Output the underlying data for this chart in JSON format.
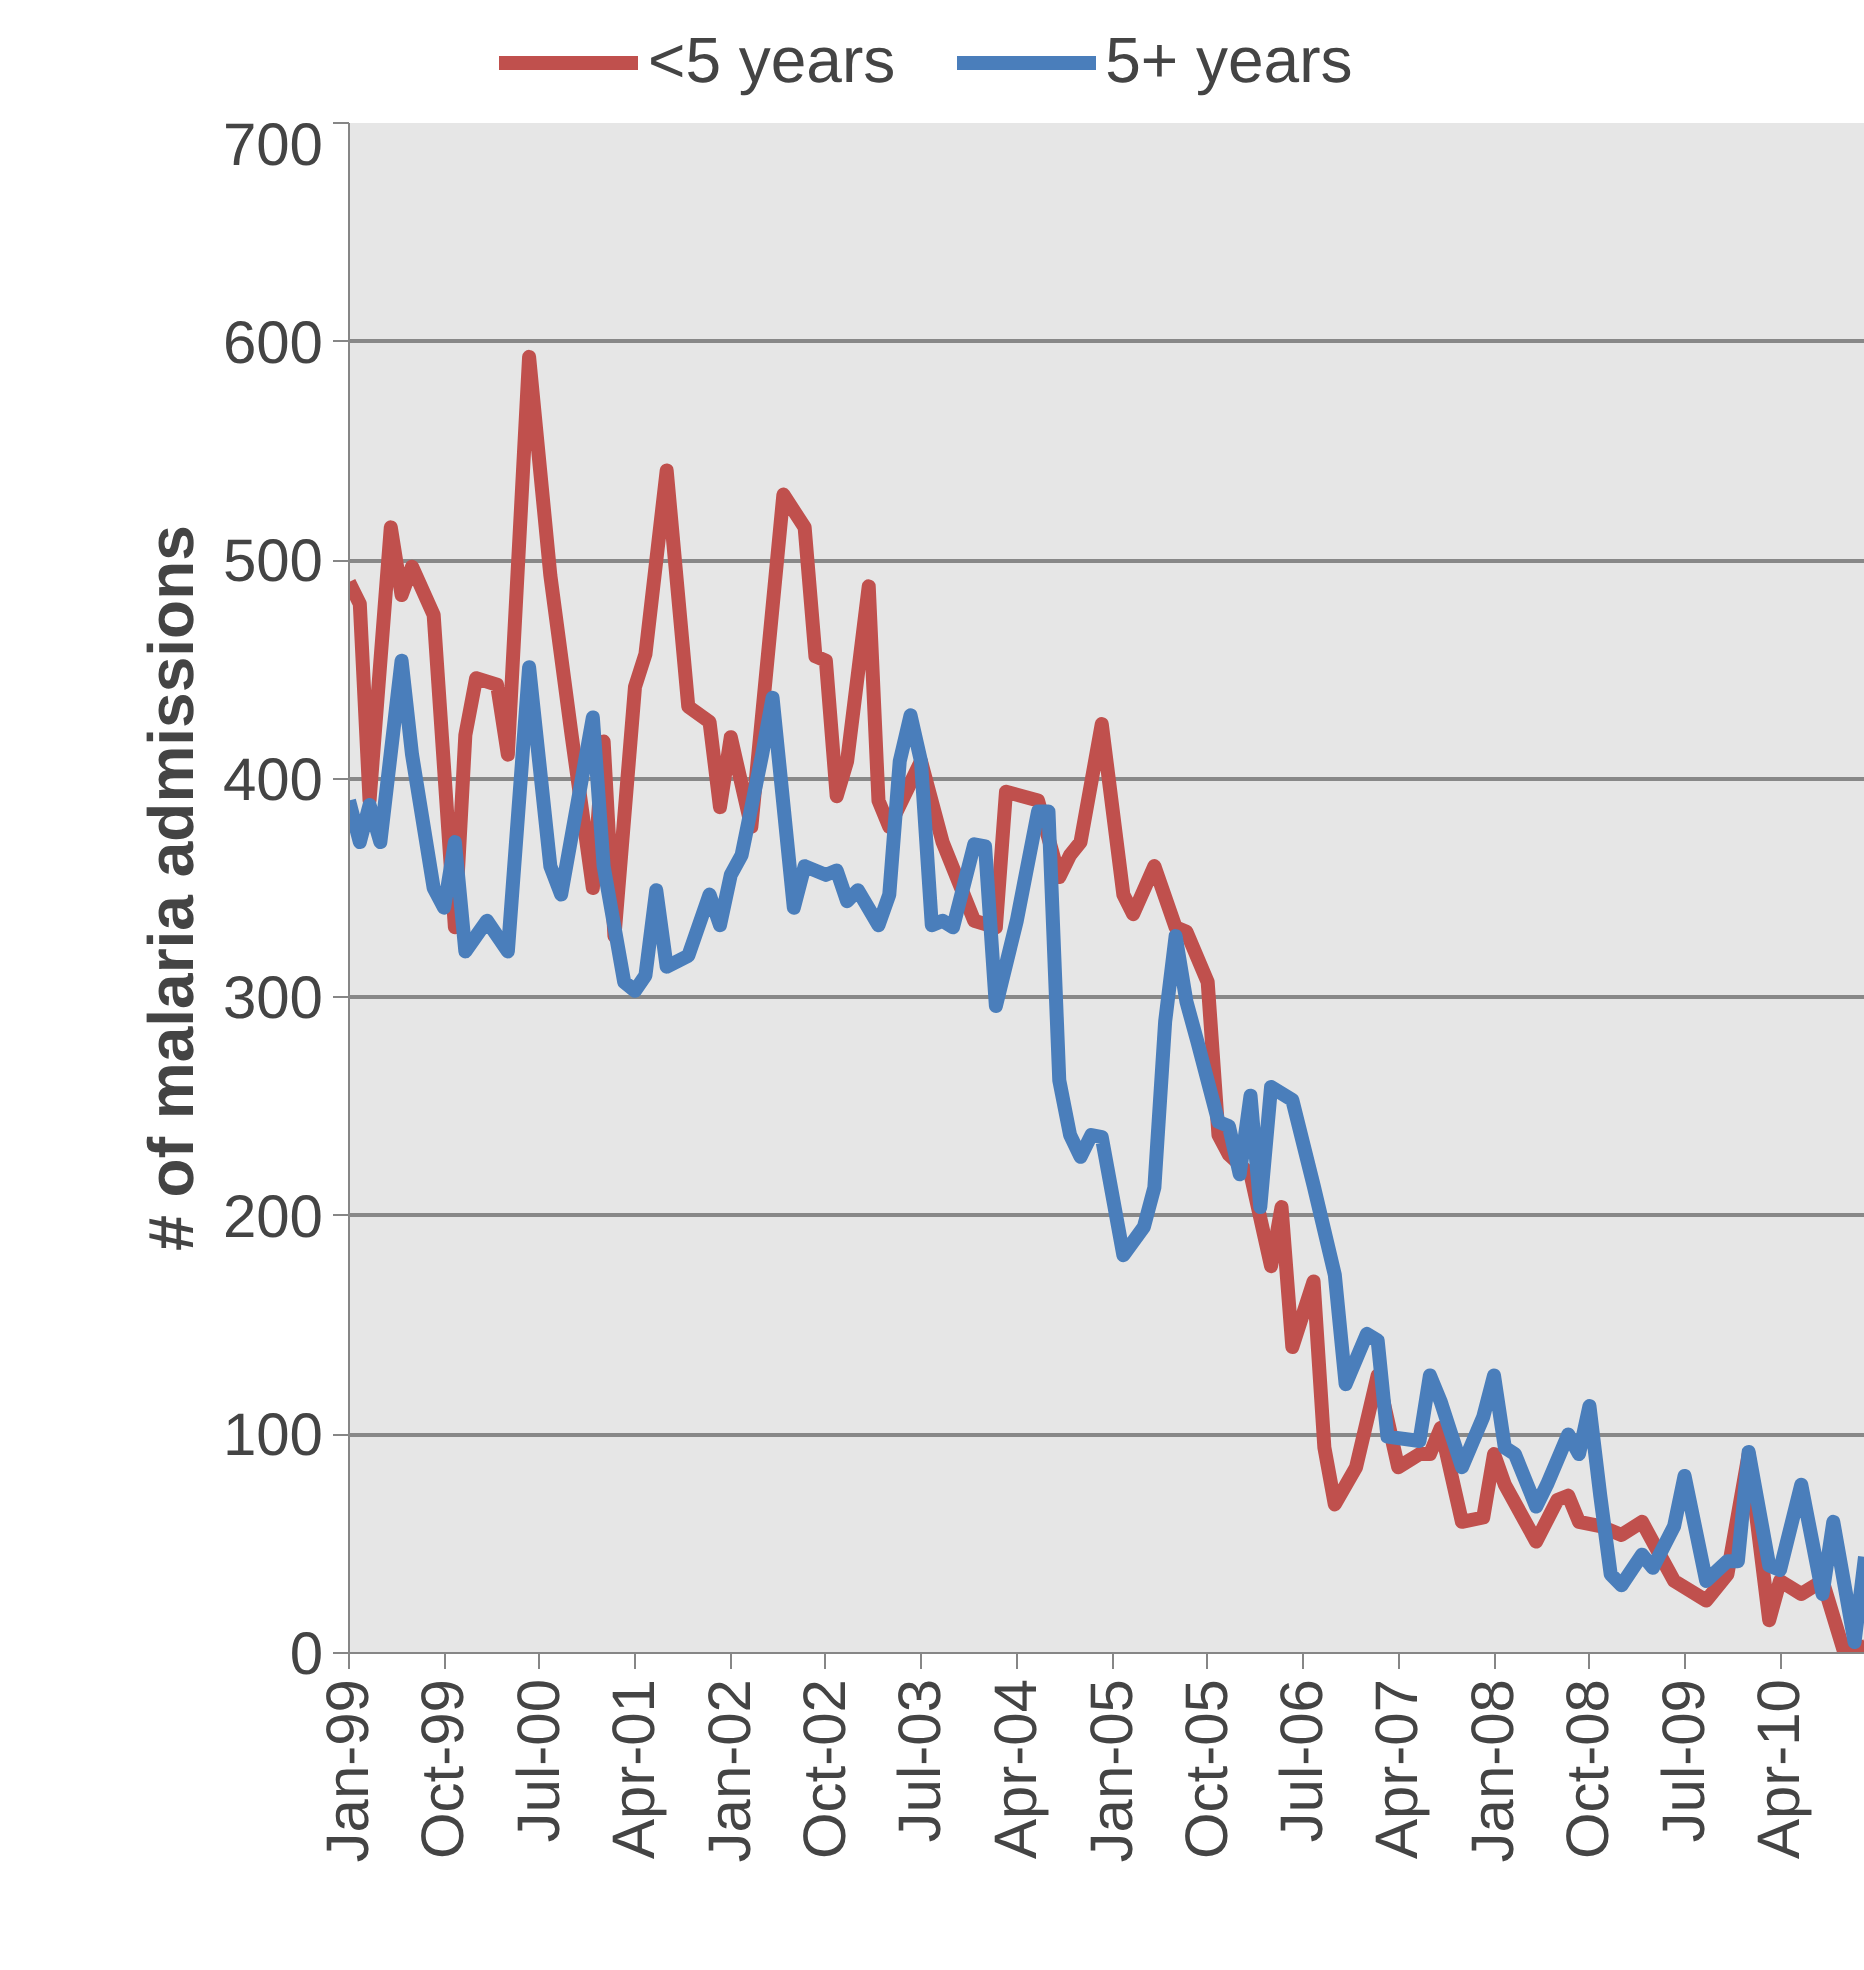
{
  "chart_data": {
    "type": "line",
    "ylabel": "# of malaria admissions",
    "legend": "top",
    "grid": "y",
    "marker": "none",
    "line_style": "solid",
    "ylim": [
      0,
      700
    ],
    "yticks": [
      0,
      100,
      200,
      300,
      400,
      500,
      600,
      700
    ],
    "xlim": [
      "1999-01",
      "2010-12"
    ],
    "xticks": [
      {
        "value": "1999-01",
        "label": "Jan-99"
      },
      {
        "value": "1999-10",
        "label": "Oct-99"
      },
      {
        "value": "2000-07",
        "label": "Jul-00"
      },
      {
        "value": "2001-04",
        "label": "Apr-01"
      },
      {
        "value": "2002-01",
        "label": "Jan-02"
      },
      {
        "value": "2002-10",
        "label": "Oct-02"
      },
      {
        "value": "2003-07",
        "label": "Jul-03"
      },
      {
        "value": "2004-04",
        "label": "Apr-04"
      },
      {
        "value": "2005-01",
        "label": "Jan-05"
      },
      {
        "value": "2005-10",
        "label": "Oct-05"
      },
      {
        "value": "2006-07",
        "label": "Jul-06"
      },
      {
        "value": "2007-04",
        "label": "Apr-07"
      },
      {
        "value": "2008-01",
        "label": "Jan-08"
      },
      {
        "value": "2008-10",
        "label": "Oct-08"
      },
      {
        "value": "2009-07",
        "label": "Jul-09"
      },
      {
        "value": "2010-04",
        "label": "Apr-10"
      }
    ],
    "series": [
      {
        "name": "<5 years",
        "color": "#c0504d",
        "x": [
          "1999-01",
          "1999-02",
          "1999-03",
          "1999-05",
          "1999-06",
          "1999-07",
          "1999-09",
          "1999-11",
          "1999-12",
          "2000-01",
          "2000-03",
          "2000-04",
          "2000-06",
          "2000-08",
          "2000-10",
          "2000-12",
          "2001-01",
          "2001-02",
          "2001-04",
          "2001-05",
          "2001-07",
          "2001-09",
          "2001-11",
          "2001-12",
          "2002-01",
          "2002-03",
          "2002-06",
          "2002-08",
          "2002-09",
          "2002-10",
          "2002-11",
          "2002-12",
          "2003-02",
          "2003-03",
          "2003-04",
          "2003-07",
          "2003-09",
          "2003-12",
          "2004-02",
          "2004-03",
          "2004-06",
          "2004-08",
          "2004-09",
          "2004-10",
          "2004-12",
          "2005-02",
          "2005-03",
          "2005-05",
          "2005-07",
          "2005-08",
          "2005-10",
          "2005-11",
          "2005-12",
          "2006-02",
          "2006-04",
          "2006-05",
          "2006-06",
          "2006-08",
          "2006-09",
          "2006-10",
          "2006-12",
          "2007-02",
          "2007-04",
          "2007-06",
          "2007-07",
          "2007-08",
          "2007-10",
          "2007-12",
          "2008-01",
          "2008-02",
          "2008-05",
          "2008-07",
          "2008-08",
          "2008-09",
          "2008-11",
          "2009-01",
          "2009-03",
          "2009-05",
          "2009-06",
          "2009-09",
          "2009-11",
          "2010-01",
          "2010-03",
          "2010-04",
          "2010-06",
          "2010-08",
          "2010-10",
          "2010-12"
        ],
        "values": [
          490,
          480,
          390,
          515,
          484,
          497,
          475,
          332,
          420,
          446,
          443,
          411,
          593,
          493,
          420,
          350,
          417,
          328,
          442,
          457,
          541,
          433,
          426,
          387,
          419,
          378,
          530,
          515,
          456,
          454,
          392,
          408,
          488,
          390,
          378,
          408,
          371,
          335,
          332,
          394,
          390,
          355,
          365,
          371,
          425,
          347,
          338,
          360,
          332,
          330,
          307,
          237,
          228,
          219,
          177,
          204,
          140,
          170,
          94,
          68,
          85,
          127,
          85,
          91,
          91,
          103,
          60,
          62,
          91,
          77,
          51,
          70,
          72,
          60,
          58,
          54,
          60,
          42,
          33,
          24,
          36,
          91,
          15,
          33,
          27,
          33,
          1,
          3
        ]
      },
      {
        "name": "5+ years",
        "color": "#4a7ebb",
        "x": [
          "1999-01",
          "1999-02",
          "1999-03",
          "1999-04",
          "1999-06",
          "1999-07",
          "1999-09",
          "1999-10",
          "1999-11",
          "1999-12",
          "2000-02",
          "2000-04",
          "2000-06",
          "2000-08",
          "2000-09",
          "2000-12",
          "2001-01",
          "2001-03",
          "2001-04",
          "2001-05",
          "2001-06",
          "2001-07",
          "2001-09",
          "2001-11",
          "2001-12",
          "2002-01",
          "2002-02",
          "2002-04",
          "2002-05",
          "2002-07",
          "2002-08",
          "2002-10",
          "2002-11",
          "2002-12",
          "2003-01",
          "2003-03",
          "2003-04",
          "2003-05",
          "2003-06",
          "2003-07",
          "2003-08",
          "2003-09",
          "2003-10",
          "2003-12",
          "2004-01",
          "2004-02",
          "2004-04",
          "2004-06",
          "2004-07",
          "2004-08",
          "2004-09",
          "2004-10",
          "2004-11",
          "2004-12",
          "2005-02",
          "2005-04",
          "2005-05",
          "2005-06",
          "2005-07",
          "2005-08",
          "2005-09",
          "2005-11",
          "2005-12",
          "2006-01",
          "2006-02",
          "2006-03",
          "2006-04",
          "2006-06",
          "2006-08",
          "2006-10",
          "2006-11",
          "2007-01",
          "2007-02",
          "2007-03",
          "2007-06",
          "2007-07",
          "2007-08",
          "2007-10",
          "2007-12",
          "2008-01",
          "2008-02",
          "2008-03",
          "2008-05",
          "2008-06",
          "2008-08",
          "2008-09",
          "2008-10",
          "2008-11",
          "2008-12",
          "2009-01",
          "2009-03",
          "2009-04",
          "2009-06",
          "2009-07",
          "2009-09",
          "2009-11",
          "2009-12",
          "2010-01",
          "2010-03",
          "2010-04",
          "2010-06",
          "2010-08",
          "2010-09",
          "2010-11",
          "2010-12"
        ],
        "values": [
          390,
          371,
          388,
          371,
          454,
          411,
          350,
          341,
          371,
          321,
          335,
          321,
          451,
          360,
          347,
          428,
          360,
          307,
          303,
          310,
          349,
          314,
          319,
          347,
          333,
          356,
          365,
          411,
          437,
          341,
          360,
          356,
          358,
          344,
          349,
          333,
          347,
          408,
          429,
          408,
          333,
          335,
          332,
          370,
          369,
          296,
          335,
          385,
          385,
          262,
          237,
          227,
          237,
          236,
          182,
          195,
          213,
          289,
          328,
          298,
          280,
          243,
          241,
          219,
          255,
          204,
          259,
          253,
          214,
          173,
          123,
          146,
          143,
          99,
          97,
          127,
          115,
          85,
          108,
          127,
          94,
          91,
          67,
          77,
          100,
          91,
          113,
          72,
          36,
          31,
          45,
          39,
          58,
          81,
          33,
          42,
          42,
          92,
          40,
          38,
          77,
          27,
          60,
          5,
          44
        ]
      }
    ]
  }
}
